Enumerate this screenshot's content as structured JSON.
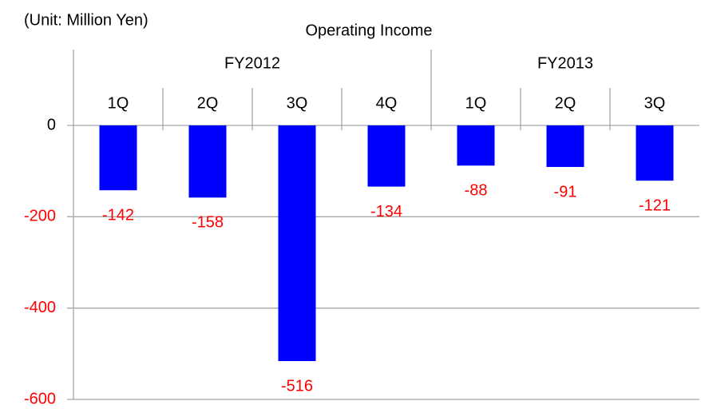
{
  "chart_data": {
    "type": "bar",
    "title": "Operating Income",
    "subtitle": "(Unit: Million Yen)",
    "groups": [
      {
        "name": "FY2012",
        "categories": [
          "1Q",
          "2Q",
          "3Q",
          "4Q"
        ]
      },
      {
        "name": "FY2013",
        "categories": [
          "1Q",
          "2Q",
          "3Q"
        ]
      }
    ],
    "values": [
      -142,
      -158,
      -516,
      -134,
      -88,
      -91,
      -121
    ],
    "color": "#0000ff",
    "label_color": "#ff0000",
    "ylim": [
      -600,
      0
    ],
    "yticks": [
      0,
      -200,
      -400,
      -600
    ],
    "grid": true
  }
}
